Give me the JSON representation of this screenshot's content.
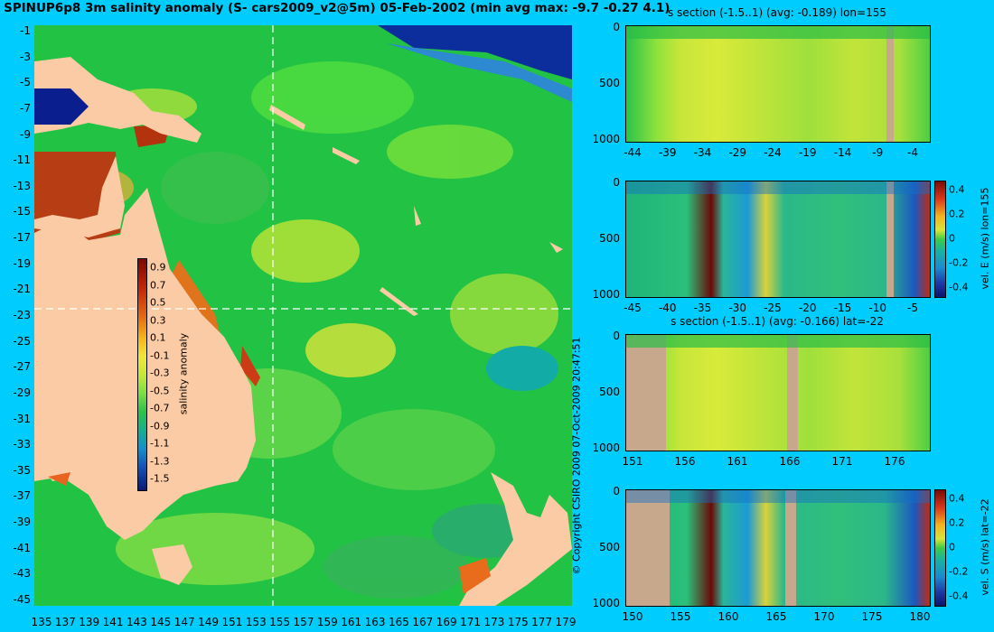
{
  "title": "SPINUP6p8 3m salinity anomaly (S- cars2009_v2@5m) 05-Feb-2002 (min avg max: -9.7 -0.27 4.1)",
  "map": {
    "y_ticks": [
      "-1",
      "-3",
      "-5",
      "-7",
      "-9",
      "-11",
      "-13",
      "-15",
      "-17",
      "-19",
      "-21",
      "-23",
      "-25",
      "-27",
      "-29",
      "-31",
      "-33",
      "-35",
      "-37",
      "-39",
      "-41",
      "-43",
      "-45"
    ],
    "x_ticks": [
      "135",
      "137",
      "139",
      "141",
      "143",
      "145",
      "147",
      "149",
      "151",
      "153",
      "155",
      "157",
      "159",
      "161",
      "163",
      "165",
      "167",
      "169",
      "171",
      "173",
      "175",
      "177",
      "179"
    ],
    "crosshair_lon": 155,
    "crosshair_lat": -22,
    "colorbar": {
      "ticks": [
        "0.9",
        "0.7",
        "0.5",
        "0.3",
        "0.1",
        "-0.1",
        "-0.3",
        "-0.5",
        "-0.7",
        "-0.9",
        "-1.1",
        "-1.3",
        "-1.5"
      ],
      "label": "salinity anomaly"
    }
  },
  "copyright": "© Copyright CSIRO 2009  07-Oct-2009 20:47:51",
  "panels": [
    {
      "title": "s section (-1.5..1) (avg: -0.189) lon=155",
      "y_ticks": [
        "0",
        "500",
        "1000"
      ],
      "x_ticks": [
        "-44",
        "-39",
        "-34",
        "-29",
        "-24",
        "-19",
        "-14",
        "-9",
        "-4"
      ],
      "colorbar": null
    },
    {
      "title": "",
      "y_ticks": [
        "0",
        "500",
        "1000"
      ],
      "x_ticks": [
        "-45",
        "-40",
        "-35",
        "-30",
        "-25",
        "-20",
        "-15",
        "-10",
        "-5"
      ],
      "colorbar": {
        "ticks": [
          "0.4",
          "0.2",
          "0",
          "-0.2",
          "-0.4"
        ],
        "label": "vel. E (m/s) lon=155"
      }
    },
    {
      "title": "s section (-1.5..1) (avg: -0.166) lat=-22",
      "y_ticks": [
        "0",
        "500",
        "1000"
      ],
      "x_ticks": [
        "151",
        "156",
        "161",
        "166",
        "171",
        "176"
      ],
      "colorbar": null
    },
    {
      "title": "",
      "y_ticks": [
        "0",
        "500",
        "1000"
      ],
      "x_ticks": [
        "150",
        "155",
        "160",
        "165",
        "170",
        "175",
        "180"
      ],
      "colorbar": {
        "ticks": [
          "0.4",
          "0.2",
          "0",
          "-0.2",
          "-0.4"
        ],
        "label": "vel. S (m/s) lat=-22"
      }
    }
  ]
}
